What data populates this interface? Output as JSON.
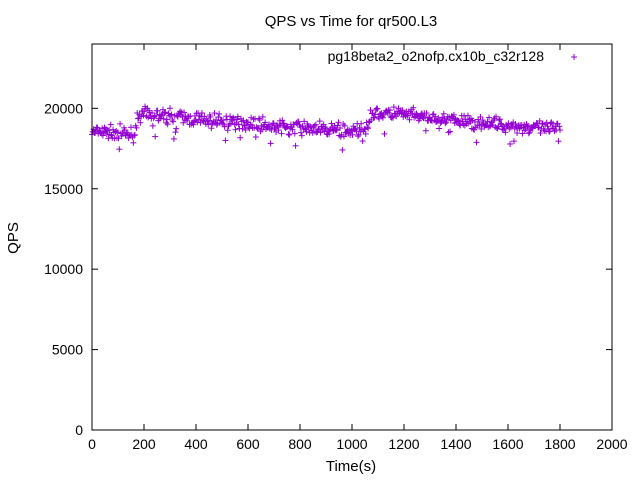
{
  "chart_data": {
    "type": "scatter",
    "title": "QPS vs Time for qr500.L3",
    "xlabel": "Time(s)",
    "ylabel": "QPS",
    "xlim": [
      0,
      2000
    ],
    "ylim": [
      0,
      24000
    ],
    "xticks": [
      0,
      200,
      400,
      600,
      800,
      1000,
      1200,
      1400,
      1600,
      1800,
      2000
    ],
    "yticks": [
      0,
      5000,
      10000,
      15000,
      20000
    ],
    "grid": false,
    "legend_position": "top-right",
    "marker": "plus",
    "series": [
      {
        "name": "pg18beta2_o2nofp.cx10b_c32r128",
        "color": "#9400d3",
        "x": [
          0,
          50,
          100,
          150,
          165,
          175,
          200,
          300,
          400,
          500,
          600,
          700,
          800,
          900,
          1000,
          1040,
          1060,
          1075,
          1100,
          1150,
          1200,
          1300,
          1400,
          1500,
          1600,
          1700,
          1800
        ],
        "y": [
          18500,
          18500,
          18500,
          18400,
          18400,
          19600,
          19600,
          19500,
          19300,
          19200,
          19100,
          18900,
          18800,
          18700,
          18600,
          18500,
          19000,
          19700,
          19700,
          19700,
          19600,
          19400,
          19200,
          19100,
          18900,
          18800,
          18700
        ]
      }
    ]
  }
}
